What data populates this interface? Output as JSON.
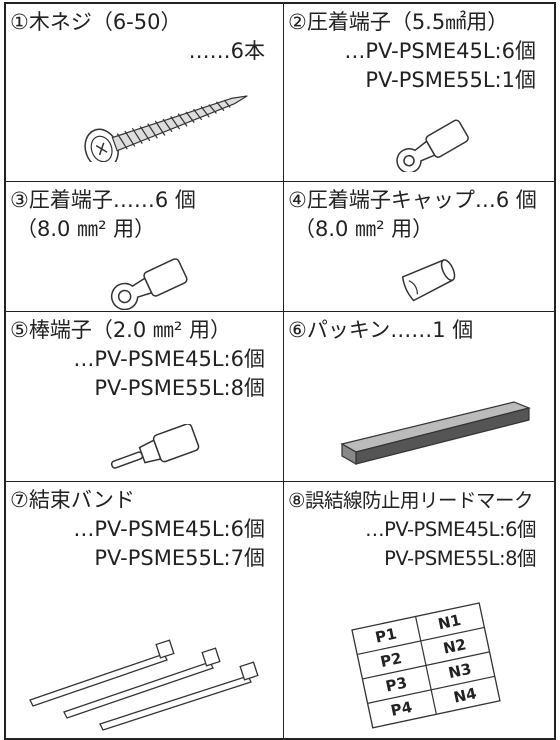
{
  "items": [
    {
      "lines": [
        "①木ネジ（6-50）",
        "……6本"
      ]
    },
    {
      "lines": [
        "②圧着端子（5.5㎟用）",
        "…PV-PSME45L:6個",
        "PV-PSME55L:1個"
      ]
    },
    {
      "lines": [
        "③圧着端子……6 個",
        "（8.0 ㎜² 用）"
      ]
    },
    {
      "lines": [
        "④圧着端子キャップ…6 個",
        "（8.0 ㎜² 用）"
      ]
    },
    {
      "lines": [
        "⑤棒端子（2.0 ㎜² 用）",
        "…PV-PSME45L:6個",
        "PV-PSME55L:8個"
      ]
    },
    {
      "lines": [
        "⑥パッキン……1 個"
      ]
    },
    {
      "lines": [
        "⑦結束バンド",
        "…PV-PSME45L:6個",
        "PV-PSME55L:7個"
      ]
    },
    {
      "lines": [
        "⑧誤結線防止用リードマーク",
        "…PV-PSME45L:6個",
        "PV-PSME55L:8個"
      ],
      "labels": [
        [
          "P1",
          "N1"
        ],
        [
          "P2",
          "N2"
        ],
        [
          "P3",
          "N3"
        ],
        [
          "P4",
          "N4"
        ]
      ]
    }
  ]
}
